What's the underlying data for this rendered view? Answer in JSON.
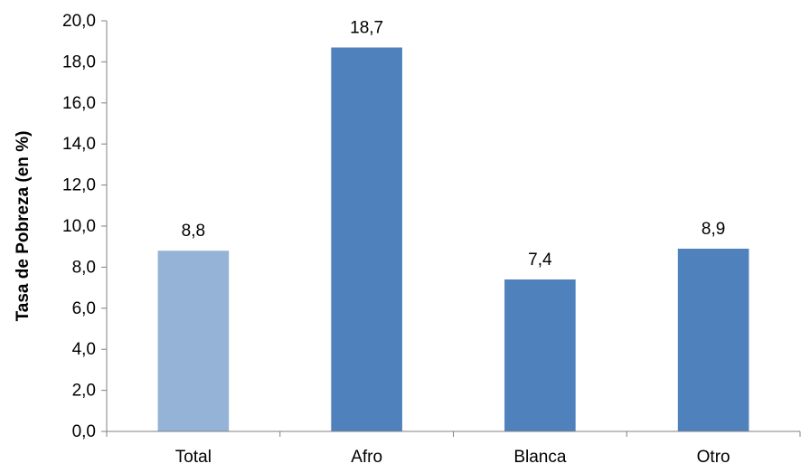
{
  "chart_data": {
    "type": "bar",
    "title": "",
    "xlabel": "",
    "ylabel": "Tasa de Pobreza (en %)",
    "categories": [
      "Total",
      "Afro",
      "Blanca",
      "Otro"
    ],
    "values": [
      8.8,
      18.7,
      7.4,
      8.9
    ],
    "value_labels": [
      "8,8",
      "18,7",
      "7,4",
      "8,9"
    ],
    "bar_colors": [
      "#95b3d7",
      "#4f81bd",
      "#4f81bd",
      "#4f81bd"
    ],
    "ylim": [
      0,
      20
    ],
    "yticks": [
      0,
      2,
      4,
      6,
      8,
      10,
      12,
      14,
      16,
      18,
      20
    ],
    "ytick_labels": [
      "0,0",
      "2,0",
      "4,0",
      "6,0",
      "8,0",
      "10,0",
      "12,0",
      "14,0",
      "16,0",
      "18,0",
      "20,0"
    ],
    "grid": false,
    "legend": "none"
  }
}
